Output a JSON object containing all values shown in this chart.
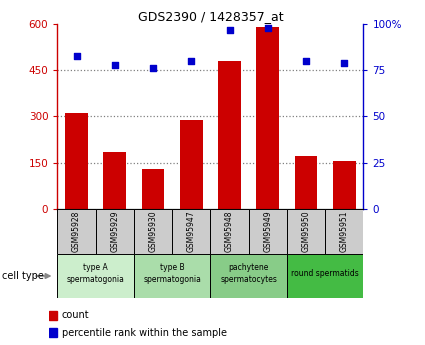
{
  "title": "GDS2390 / 1428357_at",
  "samples": [
    "GSM95928",
    "GSM95929",
    "GSM95930",
    "GSM95947",
    "GSM95948",
    "GSM95949",
    "GSM95950",
    "GSM95951"
  ],
  "counts": [
    310,
    185,
    130,
    290,
    480,
    590,
    170,
    155
  ],
  "percentiles": [
    83,
    78,
    76,
    80,
    97,
    98,
    80,
    79
  ],
  "ylim_left": [
    0,
    600
  ],
  "ylim_right": [
    0,
    100
  ],
  "yticks_left": [
    0,
    150,
    300,
    450,
    600
  ],
  "yticks_right": [
    0,
    25,
    50,
    75,
    100
  ],
  "ytick_labels_left": [
    "0",
    "150",
    "300",
    "450",
    "600"
  ],
  "ytick_labels_right": [
    "0",
    "25",
    "50",
    "75",
    "100%"
  ],
  "bar_color": "#cc0000",
  "dot_color": "#0000cc",
  "cell_groups": [
    {
      "label": "type A\nspermatogonia",
      "start": 0,
      "end": 2,
      "color": "#cceecc"
    },
    {
      "label": "type B\nspermatogonia",
      "start": 2,
      "end": 4,
      "color": "#aaddaa"
    },
    {
      "label": "pachytene\nspermatocytes",
      "start": 4,
      "end": 6,
      "color": "#88cc88"
    },
    {
      "label": "round spermatids",
      "start": 6,
      "end": 8,
      "color": "#44bb44"
    }
  ],
  "grid_color": "#000000",
  "grid_alpha": 0.5,
  "bg_color": "#ffffff",
  "tick_area_color": "#cccccc",
  "sample_label_bg": "#cccccc"
}
